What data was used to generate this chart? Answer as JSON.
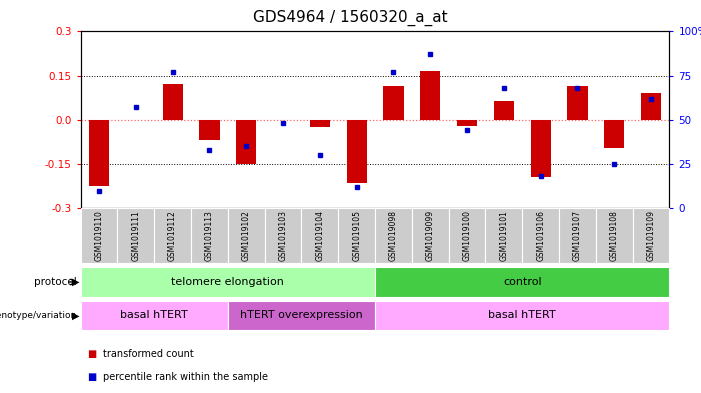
{
  "title": "GDS4964 / 1560320_a_at",
  "samples": [
    "GSM1019110",
    "GSM1019111",
    "GSM1019112",
    "GSM1019113",
    "GSM1019102",
    "GSM1019103",
    "GSM1019104",
    "GSM1019105",
    "GSM1019098",
    "GSM1019099",
    "GSM1019100",
    "GSM1019101",
    "GSM1019106",
    "GSM1019107",
    "GSM1019108",
    "GSM1019109"
  ],
  "transformed_count": [
    -0.225,
    0.0,
    0.12,
    -0.07,
    -0.15,
    0.0,
    -0.025,
    -0.215,
    0.115,
    0.165,
    -0.02,
    0.065,
    -0.195,
    0.115,
    -0.095,
    0.09
  ],
  "percentile_rank": [
    10,
    57,
    77,
    33,
    35,
    48,
    30,
    12,
    77,
    87,
    44,
    68,
    18,
    68,
    25,
    62
  ],
  "ylim_left": [
    -0.3,
    0.3
  ],
  "ylim_right": [
    0,
    100
  ],
  "yticks_left": [
    -0.3,
    -0.15,
    0.0,
    0.15,
    0.3
  ],
  "yticks_right": [
    0,
    25,
    50,
    75,
    100
  ],
  "bar_color": "#cc0000",
  "dot_color": "#0000cc",
  "zero_line_color": "#ff6666",
  "hline_color": "#000000",
  "protocol_groups": [
    {
      "label": "telomere elongation",
      "start": 0,
      "end": 7,
      "color": "#aaffaa"
    },
    {
      "label": "control",
      "start": 8,
      "end": 15,
      "color": "#44cc44"
    }
  ],
  "genotype_groups": [
    {
      "label": "basal hTERT",
      "start": 0,
      "end": 3,
      "color": "#ffaaff"
    },
    {
      "label": "hTERT overexpression",
      "start": 4,
      "end": 7,
      "color": "#cc66cc"
    },
    {
      "label": "basal hTERT",
      "start": 8,
      "end": 15,
      "color": "#ffaaff"
    }
  ],
  "legend_items": [
    {
      "label": "transformed count",
      "color": "#cc0000"
    },
    {
      "label": "percentile rank within the sample",
      "color": "#0000cc"
    }
  ],
  "tick_fontsize": 7.5,
  "title_fontsize": 11,
  "sample_fontsize": 5.5,
  "bar_width": 0.55
}
